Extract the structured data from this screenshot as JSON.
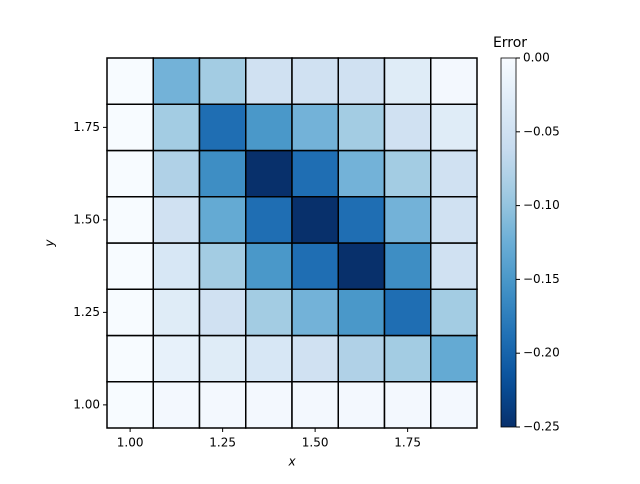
{
  "chart_data": {
    "type": "heatmap",
    "x_label": "x",
    "y_label": "y",
    "x": [
      1.0,
      1.125,
      1.25,
      1.375,
      1.5,
      1.625,
      1.75,
      1.875
    ],
    "y": [
      1.0,
      1.125,
      1.25,
      1.375,
      1.5,
      1.625,
      1.75,
      1.875
    ],
    "values": [
      [
        0,
        -0.005,
        -0.005,
        -0.005,
        -0.005,
        -0.005,
        -0.005,
        -0.005
      ],
      [
        0,
        -0.02,
        -0.03,
        -0.04,
        -0.05,
        -0.08,
        -0.09,
        -0.13
      ],
      [
        0,
        -0.03,
        -0.05,
        -0.09,
        -0.12,
        -0.15,
        -0.19,
        -0.09
      ],
      [
        0,
        -0.04,
        -0.09,
        -0.15,
        -0.19,
        -0.25,
        -0.16,
        -0.05
      ],
      [
        0,
        -0.05,
        -0.13,
        -0.19,
        -0.25,
        -0.19,
        -0.12,
        -0.05
      ],
      [
        0,
        -0.08,
        -0.16,
        -0.25,
        -0.19,
        -0.12,
        -0.09,
        -0.05
      ],
      [
        0,
        -0.09,
        -0.19,
        -0.15,
        -0.12,
        -0.09,
        -0.05,
        -0.03
      ],
      [
        0,
        -0.12,
        -0.09,
        -0.05,
        -0.05,
        -0.05,
        -0.03,
        -0.005
      ]
    ],
    "xlim": [
      0.9375,
      1.9375
    ],
    "ylim": [
      0.9375,
      1.9375
    ],
    "xticks": [
      {
        "value": 1.0,
        "label": "1.00"
      },
      {
        "value": 1.25,
        "label": "1.25"
      },
      {
        "value": 1.5,
        "label": "1.50"
      },
      {
        "value": 1.75,
        "label": "1.75"
      }
    ],
    "yticks": [
      {
        "value": 1.0,
        "label": "1.00"
      },
      {
        "value": 1.25,
        "label": "1.25"
      },
      {
        "value": 1.5,
        "label": "1.50"
      },
      {
        "value": 1.75,
        "label": "1.75"
      }
    ],
    "colormap": "Blues_r",
    "edge_color": "#000000",
    "colorbar": {
      "label": "Error",
      "lim": [
        -0.25,
        0
      ],
      "ticks": [
        {
          "value": 0,
          "label": "0.00"
        },
        {
          "value": -0.05,
          "label": "−0.05"
        },
        {
          "value": -0.1,
          "label": "−0.10"
        },
        {
          "value": -0.15,
          "label": "−0.15"
        },
        {
          "value": -0.2,
          "label": "−0.20"
        },
        {
          "value": -0.25,
          "label": "−0.25"
        }
      ]
    }
  }
}
